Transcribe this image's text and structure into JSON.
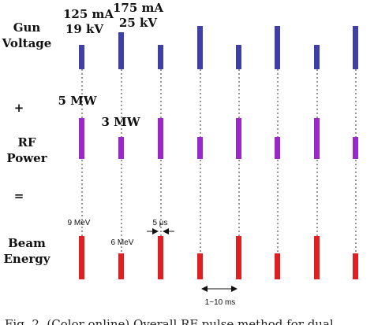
{
  "rows": {
    "gun": {
      "label_line1": "Gun",
      "label_line2": "Voltage",
      "color": "#3f3fa8"
    },
    "plus": "+",
    "rf": {
      "label_line1": "RF",
      "label_line2": "Power",
      "color": "#9b28c8"
    },
    "equals": "=",
    "beam": {
      "label_line1": "Beam",
      "label_line2": "Energy",
      "color": "#e02020"
    }
  },
  "annotations": {
    "gun_low_current": "125 mA",
    "gun_low_voltage": "19 kV",
    "gun_high_current": "175 mA",
    "gun_high_voltage": "25 kV",
    "rf_high": "5 MW",
    "rf_low": "3 MW",
    "beam_high": "9 MeV",
    "beam_low": "6 MeV",
    "pulse_width": "5 μs",
    "period": "1~10 ms"
  },
  "pulses": {
    "gun_levels": [
      "low",
      "high",
      "low",
      "high",
      "low",
      "high",
      "low",
      "high"
    ],
    "rf_levels": [
      "high",
      "low",
      "high",
      "low",
      "high",
      "low",
      "high",
      "low"
    ],
    "beam_levels": [
      "high",
      "low",
      "high",
      "low",
      "high",
      "low",
      "high",
      "low"
    ]
  },
  "caption": "Fig. 2.  (Color online) Overall RF pulse method for dual"
}
